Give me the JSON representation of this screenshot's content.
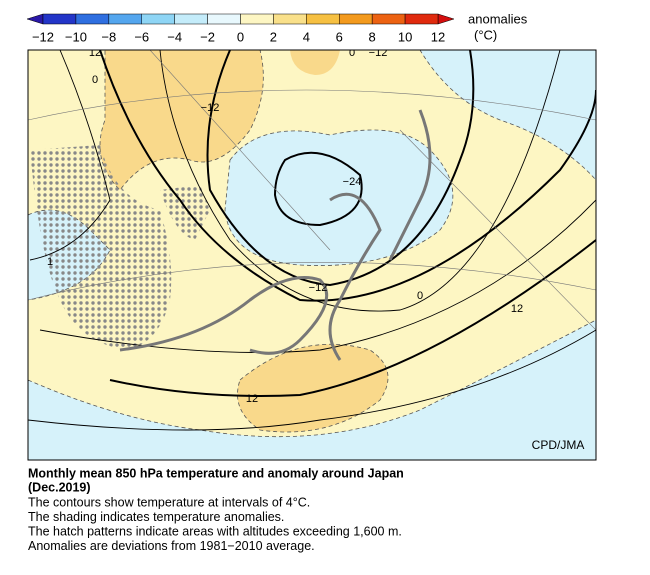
{
  "colorbar": {
    "ticks": [
      "−12",
      "−10",
      "−8",
      "−6",
      "−4",
      "−2",
      "0",
      "2",
      "4",
      "6",
      "8",
      "10",
      "12"
    ],
    "label": "anomalies",
    "unit": "(°C)"
  },
  "map": {
    "contour_labels": [
      "12",
      "0",
      "0",
      "−12",
      "−12",
      "−24",
      "1",
      "−12",
      "0",
      "12",
      "12"
    ],
    "credit": "CPD/JMA"
  },
  "caption": {
    "title": "Monthly mean 850 hPa temperature and anomaly around Japan",
    "date": "(Dec.2019)",
    "lines": [
      "The contours show temperature at intervals of 4°C.",
      "The shading indicates temperature anomalies.",
      "The hatch patterns indicate areas with altitudes exceeding 1,600 m.",
      "Anomalies are deviations from 1981−2010 average."
    ]
  }
}
